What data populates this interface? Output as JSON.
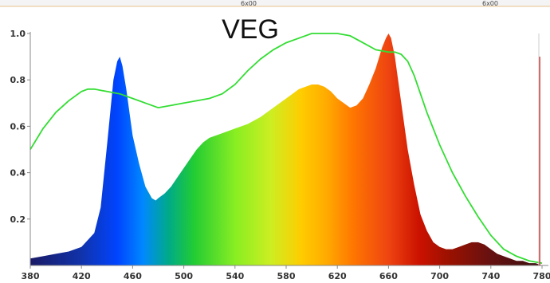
{
  "header": {
    "left_label": "",
    "marks": [
      "6x00",
      "6x00"
    ]
  },
  "chart_data": {
    "type": "area",
    "title": "VEG",
    "xlabel": "",
    "ylabel": "",
    "xlim": [
      380,
      790
    ],
    "ylim": [
      0,
      1.05
    ],
    "x_ticks": [
      380,
      420,
      460,
      500,
      540,
      580,
      620,
      660,
      700,
      740,
      780
    ],
    "y_ticks": [
      0.2,
      0.4,
      0.6,
      0.8,
      1.0
    ],
    "x_tick_labels": [
      "380",
      "420",
      "460",
      "500",
      "540",
      "580",
      "620",
      "660",
      "700",
      "740",
      "780"
    ],
    "y_tick_labels": [
      "0.2",
      "0.4",
      "0.6",
      "0.8",
      "1.0"
    ],
    "grid": false,
    "series": [
      {
        "kind": "spectrum-fill",
        "x": [
          380,
          390,
          400,
          410,
          420,
          430,
          435,
          440,
          445,
          448,
          450,
          452,
          455,
          460,
          465,
          470,
          475,
          478,
          480,
          485,
          490,
          495,
          500,
          505,
          510,
          515,
          520,
          530,
          540,
          550,
          560,
          570,
          580,
          590,
          600,
          605,
          610,
          615,
          620,
          625,
          630,
          635,
          640,
          645,
          650,
          655,
          658,
          660,
          662,
          665,
          670,
          675,
          680,
          685,
          690,
          695,
          700,
          705,
          710,
          715,
          720,
          725,
          730,
          735,
          740,
          745,
          750,
          755,
          760,
          765,
          770,
          775,
          780
        ],
        "y": [
          0.03,
          0.04,
          0.05,
          0.06,
          0.08,
          0.14,
          0.25,
          0.52,
          0.8,
          0.88,
          0.9,
          0.86,
          0.76,
          0.56,
          0.44,
          0.34,
          0.29,
          0.28,
          0.29,
          0.31,
          0.34,
          0.38,
          0.42,
          0.46,
          0.5,
          0.53,
          0.55,
          0.57,
          0.59,
          0.61,
          0.64,
          0.68,
          0.72,
          0.76,
          0.78,
          0.78,
          0.77,
          0.75,
          0.72,
          0.7,
          0.68,
          0.69,
          0.72,
          0.78,
          0.85,
          0.94,
          0.98,
          1.0,
          0.98,
          0.9,
          0.7,
          0.5,
          0.35,
          0.22,
          0.15,
          0.1,
          0.08,
          0.07,
          0.07,
          0.08,
          0.09,
          0.1,
          0.1,
          0.09,
          0.07,
          0.05,
          0.04,
          0.03,
          0.02,
          0.02,
          0.01,
          0.01,
          0.0
        ]
      },
      {
        "kind": "line",
        "color": "#33dd33",
        "x": [
          380,
          390,
          400,
          410,
          420,
          425,
          430,
          440,
          450,
          460,
          470,
          480,
          490,
          500,
          510,
          520,
          530,
          540,
          550,
          560,
          570,
          580,
          590,
          600,
          610,
          620,
          630,
          640,
          650,
          660,
          665,
          670,
          675,
          680,
          690,
          700,
          710,
          720,
          730,
          740,
          750,
          760,
          770,
          780
        ],
        "y": [
          0.5,
          0.59,
          0.66,
          0.71,
          0.75,
          0.76,
          0.76,
          0.75,
          0.74,
          0.72,
          0.7,
          0.68,
          0.69,
          0.7,
          0.71,
          0.72,
          0.74,
          0.78,
          0.84,
          0.89,
          0.93,
          0.96,
          0.98,
          1.0,
          1.0,
          1.0,
          0.99,
          0.96,
          0.93,
          0.92,
          0.92,
          0.91,
          0.88,
          0.82,
          0.66,
          0.52,
          0.4,
          0.3,
          0.21,
          0.13,
          0.07,
          0.04,
          0.02,
          0.01
        ]
      }
    ],
    "marker_line": {
      "x": 789,
      "y": 0.9,
      "color": "#cc2222"
    },
    "colors": {
      "axis": "#888888",
      "curve": "#33dd33",
      "marker": "#cc2222"
    }
  }
}
